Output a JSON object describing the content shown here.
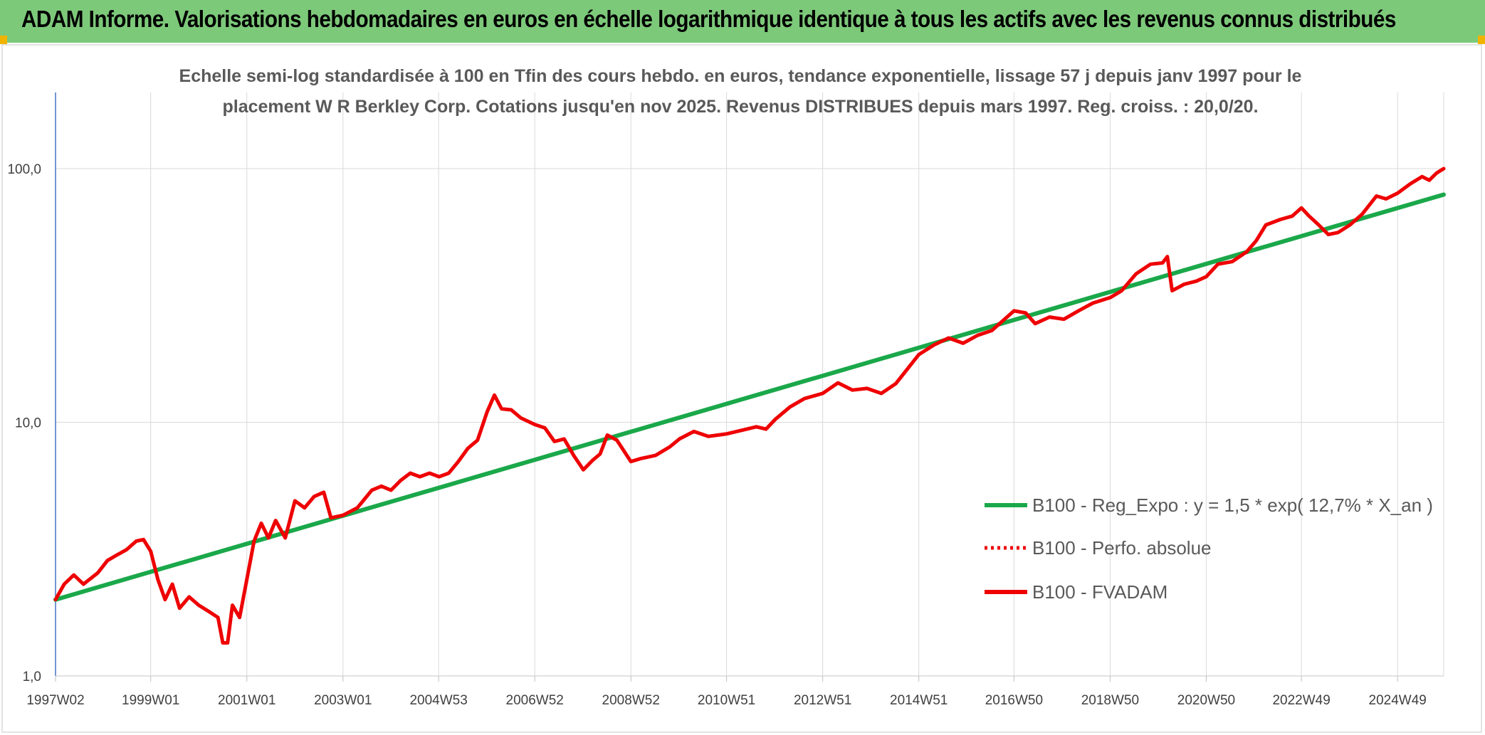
{
  "header": {
    "title": "ADAM Informe. Valorisations hebdomadaires en euros en échelle logarithmique identique à tous les actifs avec les revenus connus distribués"
  },
  "colors": {
    "header_bg": "#7dc97a",
    "trend": "#1aa84a",
    "series": "#ee0000",
    "accent_corner": "#f0b400"
  },
  "chart_data": {
    "type": "line",
    "subtitle_lines": [
      "Echelle semi-log standardisée à 100 en Tfin des cours hebdo. en euros, tendance exponentielle, lissage 57 j depuis janv 1997 pour le",
      "placement W R Berkley Corp. Cotations jusqu'en nov 2025. Revenus DISTRIBUES depuis mars 1997. Reg. croiss. : 20,0/20."
    ],
    "y_scale": "log",
    "ylim": [
      1,
      200
    ],
    "xlim": [
      1997.02,
      2025.9
    ],
    "y_ticks": [
      {
        "value": 1,
        "label": "1,0"
      },
      {
        "value": 10,
        "label": "10,0"
      },
      {
        "value": 100,
        "label": "100,0"
      }
    ],
    "x_ticks": [
      {
        "year": 1997.02,
        "label": "1997W02"
      },
      {
        "year": 1999.0,
        "label": "1999W01"
      },
      {
        "year": 2001.0,
        "label": "2001W01"
      },
      {
        "year": 2003.0,
        "label": "2003W01"
      },
      {
        "year": 2004.99,
        "label": "2004W53"
      },
      {
        "year": 2006.99,
        "label": "2006W52"
      },
      {
        "year": 2008.99,
        "label": "2008W52"
      },
      {
        "year": 2010.98,
        "label": "2010W51"
      },
      {
        "year": 2012.98,
        "label": "2012W51"
      },
      {
        "year": 2014.98,
        "label": "2014W51"
      },
      {
        "year": 2016.96,
        "label": "2016W50"
      },
      {
        "year": 2018.96,
        "label": "2018W50"
      },
      {
        "year": 2020.96,
        "label": "2020W50"
      },
      {
        "year": 2022.94,
        "label": "2022W49"
      },
      {
        "year": 2024.94,
        "label": "2024W49"
      }
    ],
    "grid": true,
    "legend_position": "bottom-right",
    "series": [
      {
        "name": "B100 - Reg_Expo : y = 1,5 * exp( 12,7% *  X_an )",
        "style": "solid-green",
        "points": [
          [
            1997.02,
            2.0
          ],
          [
            2025.9,
            79.0
          ]
        ]
      },
      {
        "name": "B100 - Perfo. absolue",
        "style": "dotted-red",
        "points": []
      },
      {
        "name": "B100 - FVADAM",
        "style": "solid-red",
        "points": [
          [
            1997.02,
            2.0
          ],
          [
            1997.2,
            2.3
          ],
          [
            1997.4,
            2.5
          ],
          [
            1997.6,
            2.3
          ],
          [
            1997.9,
            2.55
          ],
          [
            1998.1,
            2.85
          ],
          [
            1998.3,
            3.0
          ],
          [
            1998.5,
            3.15
          ],
          [
            1998.7,
            3.4
          ],
          [
            1998.85,
            3.45
          ],
          [
            1999.0,
            3.1
          ],
          [
            1999.15,
            2.4
          ],
          [
            1999.3,
            2.0
          ],
          [
            1999.45,
            2.3
          ],
          [
            1999.6,
            1.85
          ],
          [
            1999.8,
            2.05
          ],
          [
            2000.0,
            1.9
          ],
          [
            2000.2,
            1.8
          ],
          [
            2000.4,
            1.7
          ],
          [
            2000.5,
            1.35
          ],
          [
            2000.6,
            1.35
          ],
          [
            2000.7,
            1.9
          ],
          [
            2000.85,
            1.7
          ],
          [
            2001.0,
            2.4
          ],
          [
            2001.15,
            3.4
          ],
          [
            2001.3,
            4.0
          ],
          [
            2001.45,
            3.5
          ],
          [
            2001.6,
            4.1
          ],
          [
            2001.8,
            3.5
          ],
          [
            2002.0,
            4.9
          ],
          [
            2002.2,
            4.6
          ],
          [
            2002.4,
            5.1
          ],
          [
            2002.6,
            5.3
          ],
          [
            2002.75,
            4.2
          ],
          [
            2003.0,
            4.3
          ],
          [
            2003.3,
            4.6
          ],
          [
            2003.6,
            5.4
          ],
          [
            2003.8,
            5.6
          ],
          [
            2004.0,
            5.4
          ],
          [
            2004.2,
            5.9
          ],
          [
            2004.4,
            6.3
          ],
          [
            2004.6,
            6.1
          ],
          [
            2004.8,
            6.3
          ],
          [
            2005.0,
            6.1
          ],
          [
            2005.2,
            6.3
          ],
          [
            2005.4,
            7.0
          ],
          [
            2005.6,
            7.9
          ],
          [
            2005.8,
            8.5
          ],
          [
            2006.0,
            11.0
          ],
          [
            2006.15,
            12.8
          ],
          [
            2006.3,
            11.3
          ],
          [
            2006.5,
            11.2
          ],
          [
            2006.7,
            10.4
          ],
          [
            2006.99,
            9.8
          ],
          [
            2007.2,
            9.5
          ],
          [
            2007.4,
            8.4
          ],
          [
            2007.6,
            8.6
          ],
          [
            2007.8,
            7.4
          ],
          [
            2008.0,
            6.5
          ],
          [
            2008.2,
            7.1
          ],
          [
            2008.35,
            7.5
          ],
          [
            2008.5,
            8.9
          ],
          [
            2008.7,
            8.5
          ],
          [
            2008.99,
            7.0
          ],
          [
            2009.2,
            7.2
          ],
          [
            2009.5,
            7.4
          ],
          [
            2009.8,
            8.0
          ],
          [
            2010.0,
            8.6
          ],
          [
            2010.3,
            9.2
          ],
          [
            2010.6,
            8.8
          ],
          [
            2010.98,
            9.0
          ],
          [
            2011.3,
            9.3
          ],
          [
            2011.6,
            9.6
          ],
          [
            2011.8,
            9.4
          ],
          [
            2012.0,
            10.3
          ],
          [
            2012.3,
            11.5
          ],
          [
            2012.6,
            12.4
          ],
          [
            2012.98,
            13.0
          ],
          [
            2013.3,
            14.3
          ],
          [
            2013.6,
            13.4
          ],
          [
            2013.9,
            13.6
          ],
          [
            2014.2,
            13.0
          ],
          [
            2014.5,
            14.2
          ],
          [
            2014.98,
            18.5
          ],
          [
            2015.3,
            20.2
          ],
          [
            2015.6,
            21.5
          ],
          [
            2015.9,
            20.5
          ],
          [
            2016.2,
            22.0
          ],
          [
            2016.5,
            23.0
          ],
          [
            2016.96,
            27.5
          ],
          [
            2017.2,
            27.0
          ],
          [
            2017.4,
            24.5
          ],
          [
            2017.7,
            26.0
          ],
          [
            2018.0,
            25.5
          ],
          [
            2018.3,
            27.5
          ],
          [
            2018.6,
            29.5
          ],
          [
            2018.96,
            31.0
          ],
          [
            2019.2,
            33.0
          ],
          [
            2019.5,
            38.5
          ],
          [
            2019.8,
            42.0
          ],
          [
            2020.05,
            42.5
          ],
          [
            2020.15,
            45.0
          ],
          [
            2020.25,
            33.0
          ],
          [
            2020.5,
            35.0
          ],
          [
            2020.75,
            36.0
          ],
          [
            2020.96,
            37.5
          ],
          [
            2021.2,
            42.0
          ],
          [
            2021.5,
            43.0
          ],
          [
            2021.8,
            47.0
          ],
          [
            2022.0,
            52.0
          ],
          [
            2022.2,
            60.0
          ],
          [
            2022.5,
            63.0
          ],
          [
            2022.75,
            65.0
          ],
          [
            2022.94,
            70.0
          ],
          [
            2023.1,
            65.0
          ],
          [
            2023.3,
            60.0
          ],
          [
            2023.5,
            55.0
          ],
          [
            2023.7,
            56.0
          ],
          [
            2023.95,
            60.0
          ],
          [
            2024.2,
            66.0
          ],
          [
            2024.5,
            78.0
          ],
          [
            2024.7,
            76.0
          ],
          [
            2024.94,
            80.0
          ],
          [
            2025.2,
            87.0
          ],
          [
            2025.45,
            93.0
          ],
          [
            2025.6,
            90.0
          ],
          [
            2025.75,
            96.0
          ],
          [
            2025.9,
            100.0
          ]
        ]
      }
    ]
  }
}
